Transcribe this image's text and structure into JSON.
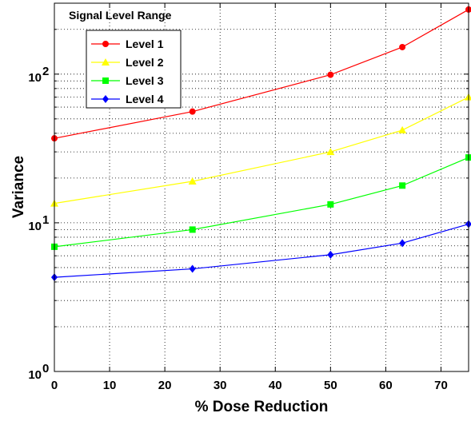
{
  "chart_data": {
    "type": "line",
    "title": "",
    "xlabel": "% Dose Reduction",
    "ylabel": "Variance",
    "x": [
      0,
      25,
      50,
      63,
      75
    ],
    "xlim": [
      0,
      75
    ],
    "ylim": [
      1,
      300
    ],
    "yscale": "log",
    "grid": true,
    "xticks": [
      "0",
      "10",
      "20",
      "30",
      "40",
      "50",
      "60",
      "70"
    ],
    "yticks": [
      {
        "base": "10",
        "exp": "0"
      },
      {
        "base": "10",
        "exp": "1"
      },
      {
        "base": "10",
        "exp": "2"
      }
    ],
    "legend": {
      "title": "Signal Level Range",
      "placement": "top-left"
    },
    "series": [
      {
        "name": "Level 1",
        "color": "#ff0000",
        "marker": "circle",
        "values": [
          37,
          56,
          99,
          152,
          272
        ]
      },
      {
        "name": "Level 2",
        "color": "#ffff00",
        "marker": "triangle",
        "values": [
          13.5,
          19,
          30,
          42,
          70
        ]
      },
      {
        "name": "Level 3",
        "color": "#00ff00",
        "marker": "square",
        "values": [
          6.9,
          9,
          13.3,
          17.8,
          27.5
        ]
      },
      {
        "name": "Level 4",
        "color": "#0000ff",
        "marker": "diamond",
        "values": [
          4.3,
          4.9,
          6.1,
          7.3,
          9.8
        ]
      }
    ]
  }
}
